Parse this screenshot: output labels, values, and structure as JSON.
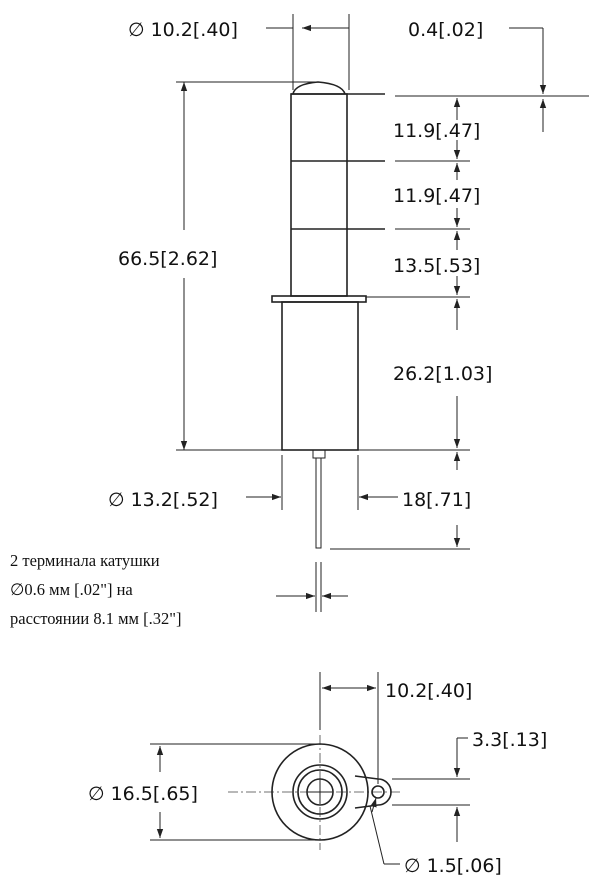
{
  "dimensions": {
    "top_dia": "∅ 10.2[.40]",
    "wire": "0.4[.02]",
    "overall_len": "66.5[2.62]",
    "seg1": "11.9[.47]",
    "seg2": "11.9[.47]",
    "seg3": "13.5[.53]",
    "seg4": "26.2[1.03]",
    "body_dia": "∅ 13.2[.52]",
    "pin_len": "18[.71]"
  },
  "note": {
    "line1": "2 терминала катушки",
    "line2": "∅0.6 мм [.02\"] на",
    "line3": "расстоянии 8.1 мм [.32\"]"
  },
  "bottom_view": {
    "offset": "10.2[.40]",
    "tab_width": "3.3[.13]",
    "flange_dia": "∅ 16.5[.65]",
    "hole_dia": "∅ 1.5[.06]"
  }
}
